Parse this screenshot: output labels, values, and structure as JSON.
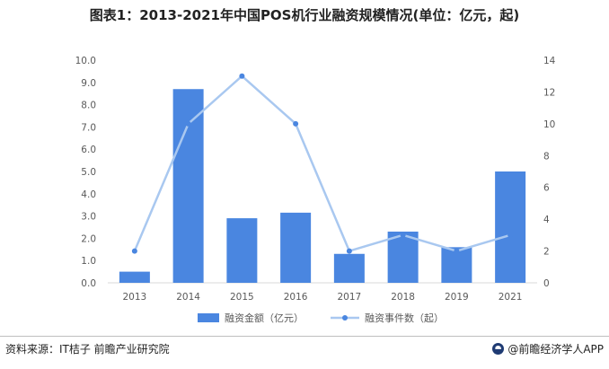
{
  "title": "图表1：2013-2021年中国POS机行业融资规模情况(单位：亿元，起)",
  "footer": {
    "source": "资料来源：IT桔子 前瞻产业研究院",
    "brand": "@前瞻经济学人APP"
  },
  "colors": {
    "bar": "#4a86e0",
    "line": "#a9c8f0",
    "marker": "#4a86e0",
    "axis": "#d9d9d9",
    "text": "#595959"
  },
  "chart_data": {
    "type": "bar",
    "categories": [
      "2013",
      "2014",
      "2015",
      "2016",
      "2017",
      "2018",
      "2019",
      "2021"
    ],
    "series": [
      {
        "name": "融资金额（亿元）",
        "type": "bar",
        "axis": "left",
        "values": [
          0.5,
          8.7,
          2.9,
          3.15,
          1.3,
          2.3,
          1.6,
          5.0
        ]
      },
      {
        "name": "融资事件数（起）",
        "type": "line",
        "axis": "right",
        "values": [
          2,
          10,
          13,
          10,
          2,
          3,
          2,
          3
        ]
      }
    ],
    "y_left": {
      "min": 0,
      "max": 10,
      "ticks": [
        "0.0",
        "1.0",
        "2.0",
        "3.0",
        "4.0",
        "5.0",
        "6.0",
        "7.0",
        "8.0",
        "9.0",
        "10.0"
      ]
    },
    "y_right": {
      "min": 0,
      "max": 14,
      "ticks": [
        "0",
        "2",
        "4",
        "6",
        "8",
        "10",
        "12",
        "14"
      ]
    },
    "legend_position": "bottom",
    "grid": false
  }
}
